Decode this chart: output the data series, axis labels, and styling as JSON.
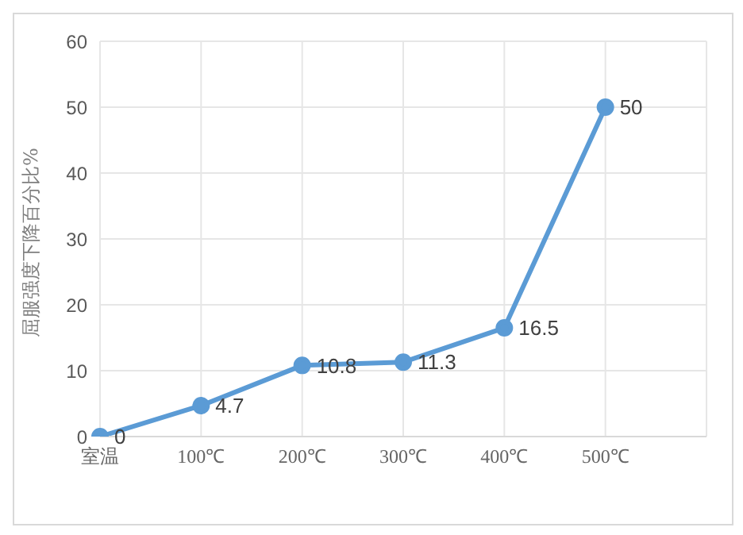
{
  "chart_data": {
    "type": "line",
    "ylabel": "屈服强度下降百分比%",
    "categories": [
      "室温",
      "100℃",
      "200℃",
      "300℃",
      "400℃",
      "500℃",
      null
    ],
    "series": [
      {
        "color": "#5b9bd5",
        "values": [
          0,
          4.7,
          10.8,
          11.3,
          16.5,
          50,
          null
        ]
      }
    ],
    "ylim": [
      0,
      60
    ],
    "yticks": [
      0,
      10,
      20,
      30,
      40,
      50,
      60
    ],
    "grid": true,
    "legend": false,
    "marker": "circle",
    "line_style": "solid",
    "data_labels": true
  }
}
